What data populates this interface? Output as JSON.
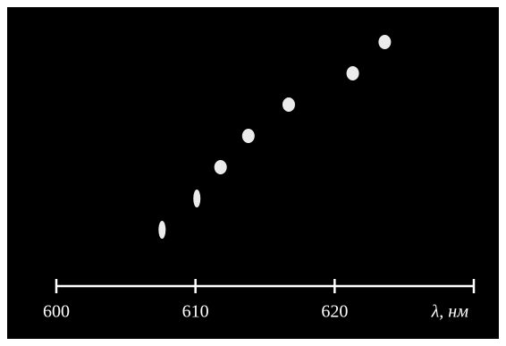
{
  "chart_data": {
    "type": "scatter",
    "x": [
      607.6,
      610.1,
      611.8,
      613.8,
      616.7,
      621.3,
      623.6
    ],
    "color": "#ffffff",
    "xlim": [
      600,
      630
    ],
    "xticks": [
      600,
      610,
      620,
      {
        "value": 630,
        "label": "λ, нм"
      }
    ]
  }
}
